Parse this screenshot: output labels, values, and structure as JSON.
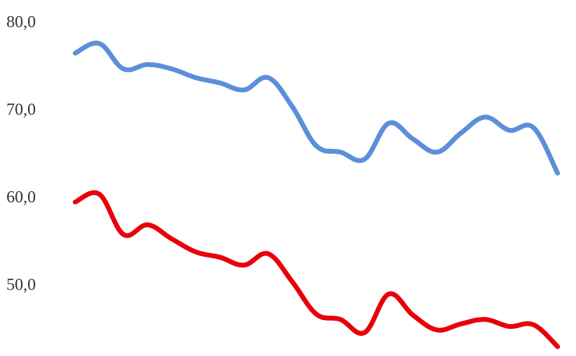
{
  "chart_data": {
    "type": "line",
    "title": "",
    "xlabel": "",
    "ylabel": "",
    "ylim": [
      42,
      81
    ],
    "y_ticks": [
      "50,0",
      "60,0",
      "70,0",
      "80,0"
    ],
    "y_tick_values": [
      50,
      60,
      70,
      80
    ],
    "grid": false,
    "legend": "none",
    "x": [
      1,
      2,
      3,
      4,
      5,
      6,
      7,
      8,
      9,
      10,
      11,
      12,
      13,
      14,
      15,
      16,
      17,
      18,
      19,
      20,
      21
    ],
    "series": [
      {
        "color": "#5B8FD8",
        "values": [
          76.4,
          77.5,
          74.6,
          75.1,
          74.6,
          73.6,
          73.0,
          72.2,
          73.6,
          70.3,
          65.8,
          65.1,
          64.3,
          68.4,
          66.6,
          65.1,
          67.3,
          69.1,
          67.6,
          67.9,
          62.7
        ]
      },
      {
        "color": "#E8000B",
        "values": [
          59.4,
          60.3,
          55.7,
          56.8,
          55.2,
          53.7,
          53.1,
          52.2,
          53.5,
          50.3,
          46.6,
          46.0,
          44.5,
          48.9,
          46.5,
          44.8,
          45.5,
          46.0,
          45.2,
          45.4,
          42.9
        ]
      }
    ]
  }
}
